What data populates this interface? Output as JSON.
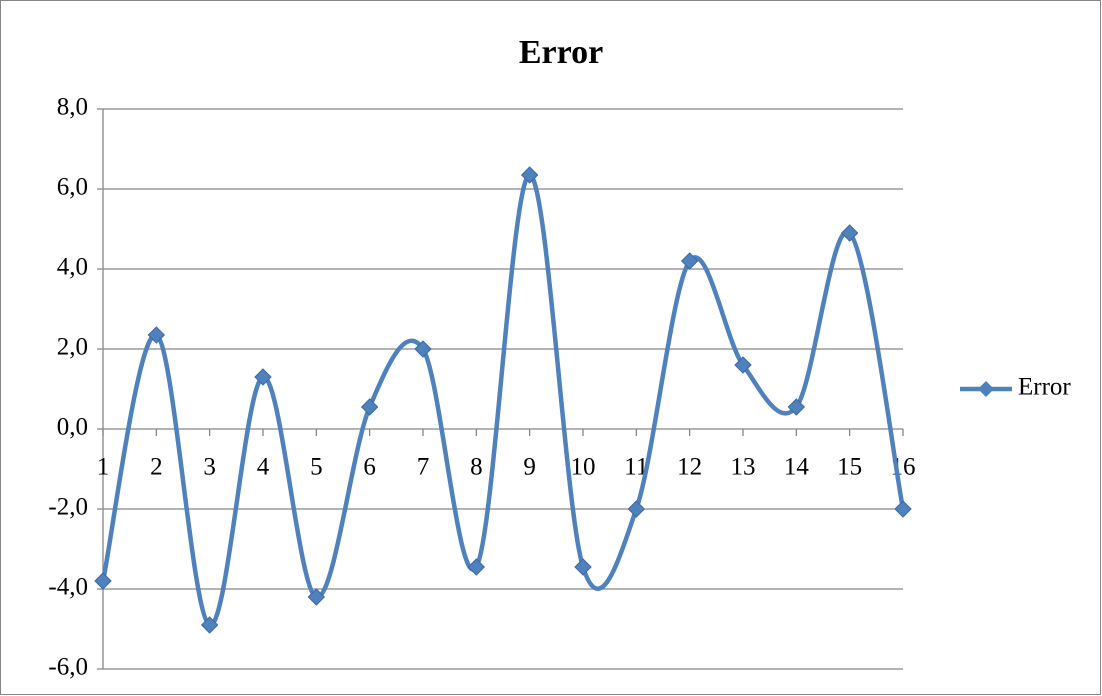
{
  "chart_data": {
    "type": "line",
    "title": "Error",
    "categories": [
      "1",
      "2",
      "3",
      "4",
      "5",
      "6",
      "7",
      "8",
      "9",
      "10",
      "11",
      "12",
      "13",
      "14",
      "15",
      "16"
    ],
    "series": [
      {
        "name": "Error",
        "color": "#4f81bd",
        "values": [
          -3.8,
          2.35,
          -4.9,
          1.3,
          -4.2,
          0.55,
          2.0,
          -3.45,
          6.35,
          -3.45,
          -2.0,
          4.2,
          1.6,
          0.55,
          4.9,
          -2.0
        ]
      }
    ],
    "ylim": [
      -6,
      8
    ],
    "yticks": [
      {
        "value": -6,
        "label": "-6,0"
      },
      {
        "value": -4,
        "label": "-4,0"
      },
      {
        "value": -2,
        "label": "-2,0"
      },
      {
        "value": 0,
        "label": "0,0"
      },
      {
        "value": 2,
        "label": "2,0"
      },
      {
        "value": 4,
        "label": "4,0"
      },
      {
        "value": 6,
        "label": "6,0"
      },
      {
        "value": 8,
        "label": "8,0"
      }
    ],
    "grid": true,
    "smooth": true,
    "legend": "right"
  }
}
